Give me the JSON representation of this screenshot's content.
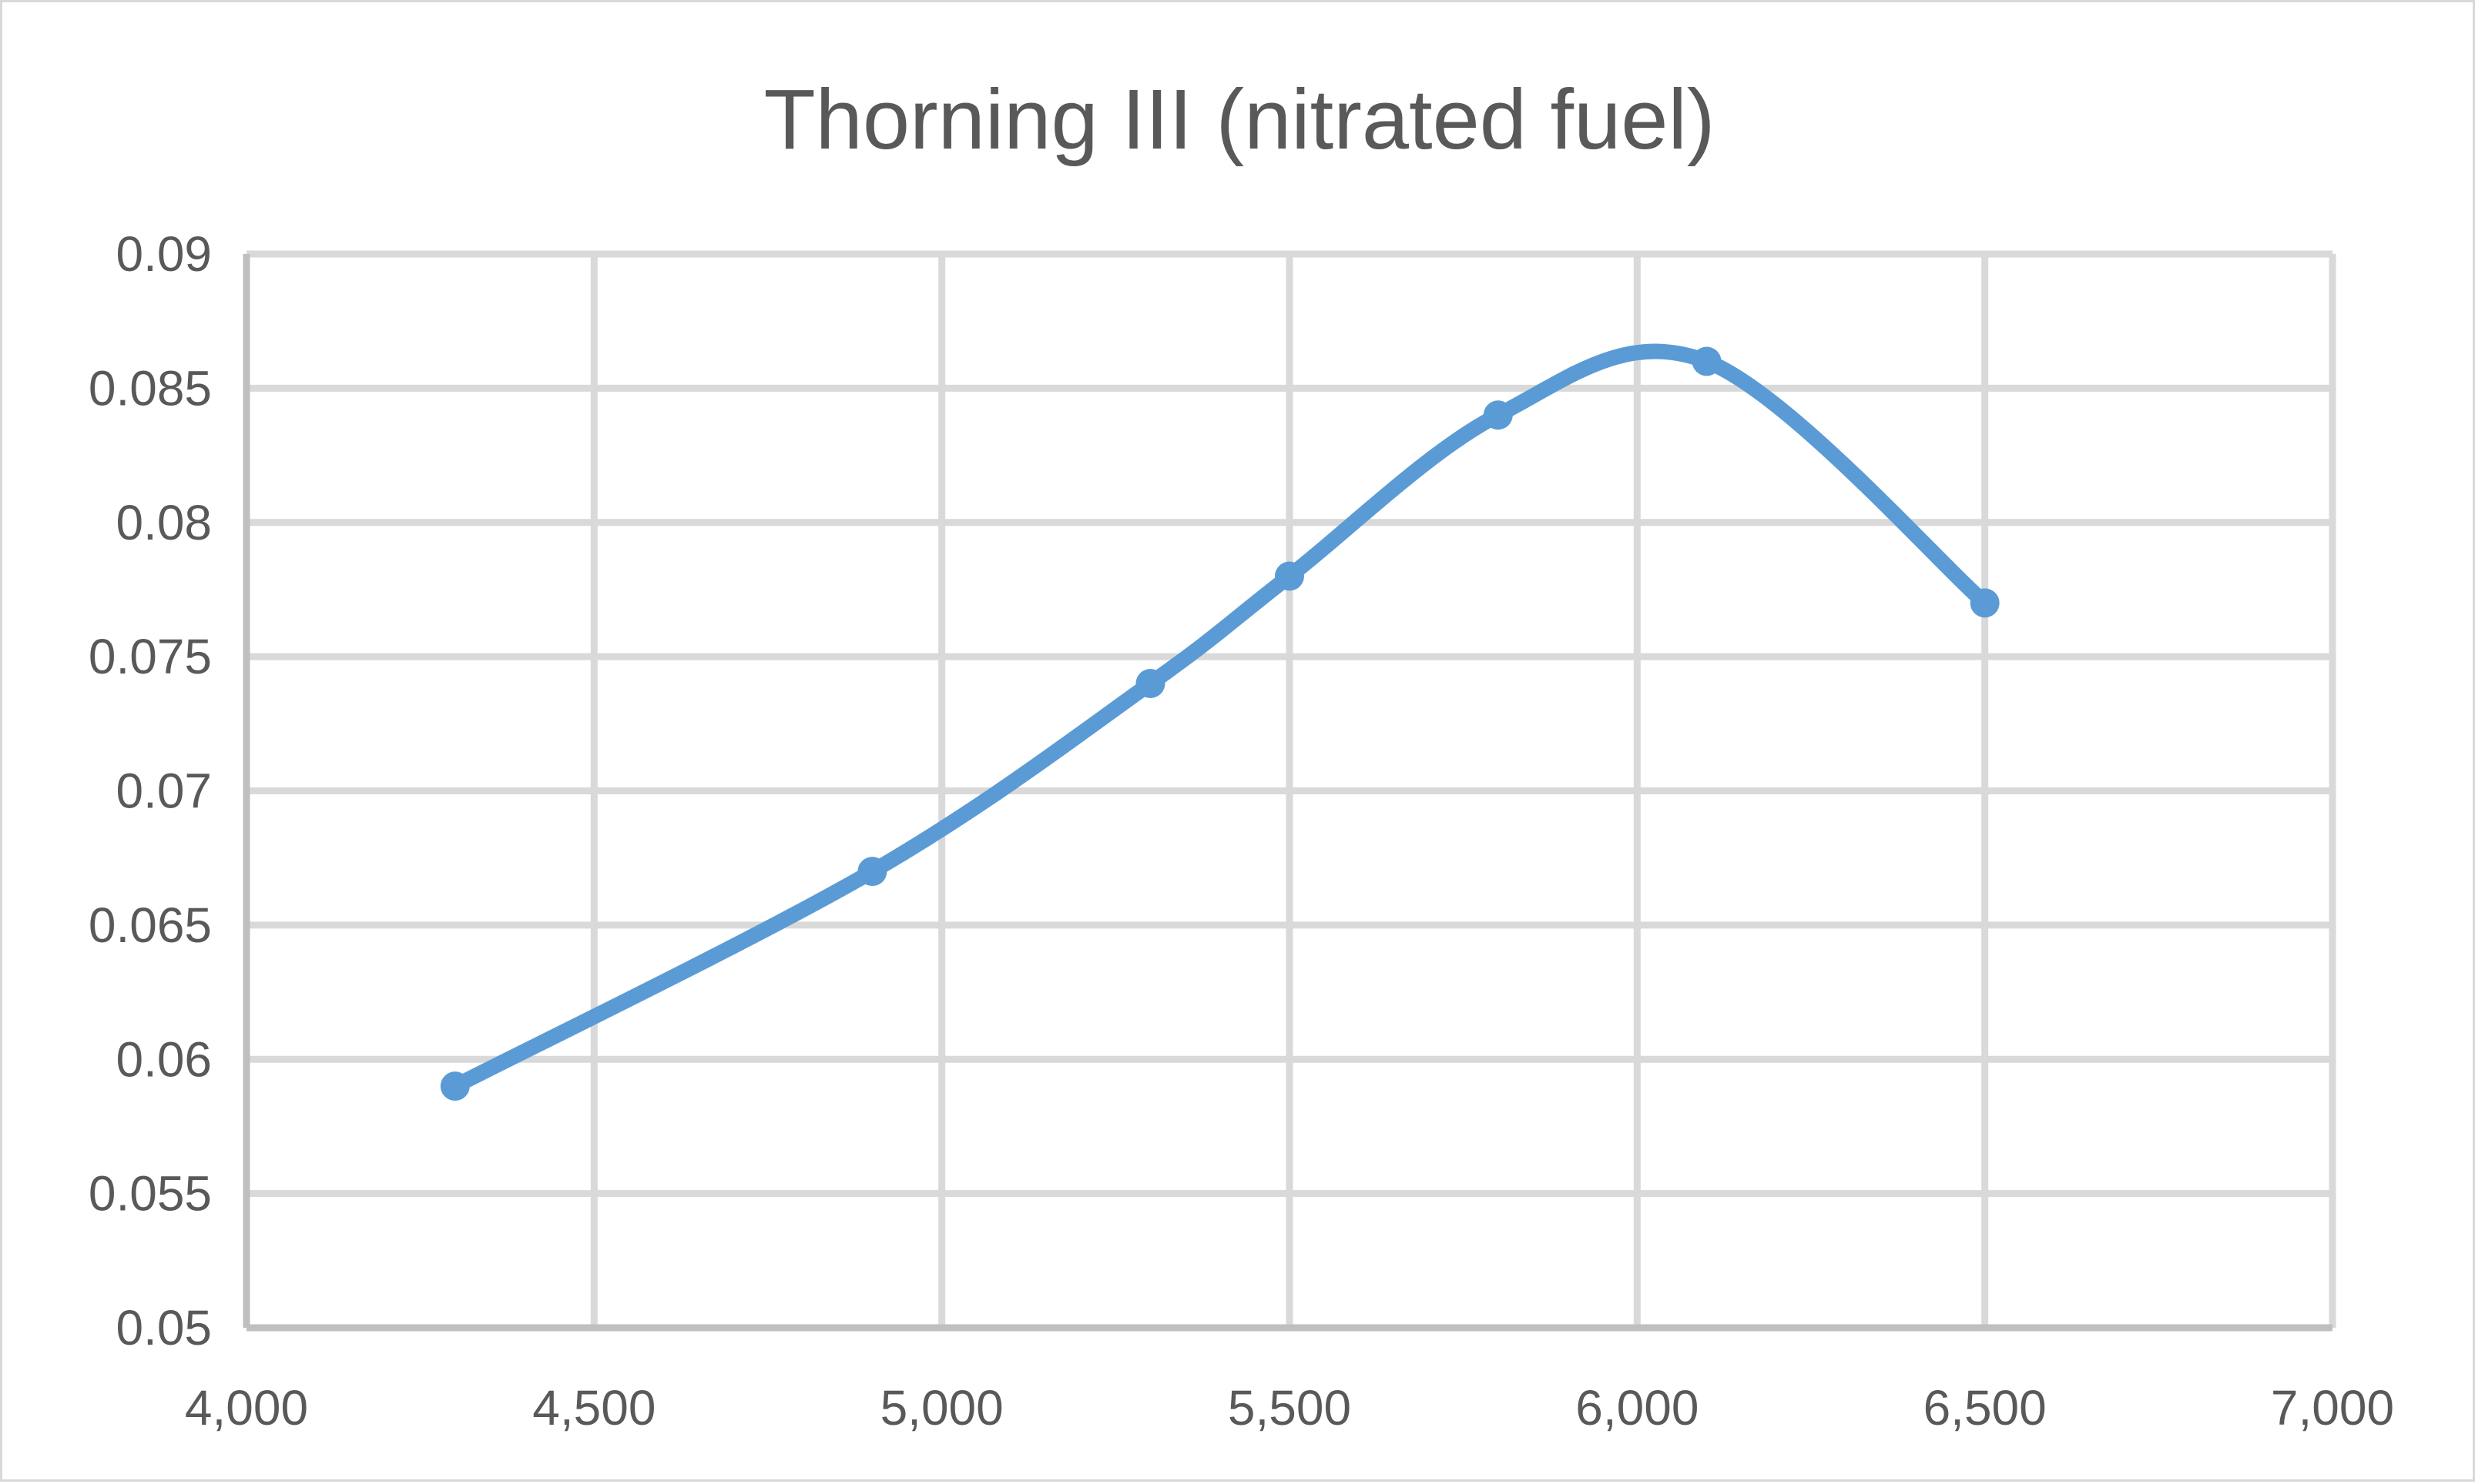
{
  "chart_data": {
    "type": "scatter",
    "title": "Thorning III (nitrated fuel)",
    "xlabel": "",
    "ylabel": "",
    "xlim": [
      4000,
      7000
    ],
    "ylim": [
      0.05,
      0.09
    ],
    "x_ticks": [
      4000,
      4500,
      5000,
      5500,
      6000,
      6500,
      7000
    ],
    "x_tick_labels": [
      "4,000",
      "4,500",
      "5,000",
      "5,500",
      "6,000",
      "6,500",
      "7,000"
    ],
    "y_ticks": [
      0.05,
      0.055,
      0.06,
      0.065,
      0.07,
      0.075,
      0.08,
      0.085,
      0.09
    ],
    "y_tick_labels": [
      "0.05",
      "0.055",
      "0.06",
      "0.065",
      "0.07",
      "0.075",
      "0.08",
      "0.085",
      "0.09"
    ],
    "grid": true,
    "legend": "none",
    "smooth": true,
    "series": [
      {
        "color": "#5b9bd5",
        "points": [
          {
            "x": 4300,
            "y": 0.059
          },
          {
            "x": 4900,
            "y": 0.067
          },
          {
            "x": 5300,
            "y": 0.074
          },
          {
            "x": 5500,
            "y": 0.078
          },
          {
            "x": 5800,
            "y": 0.084
          },
          {
            "x": 6100,
            "y": 0.086
          },
          {
            "x": 6500,
            "y": 0.077
          }
        ]
      }
    ]
  }
}
